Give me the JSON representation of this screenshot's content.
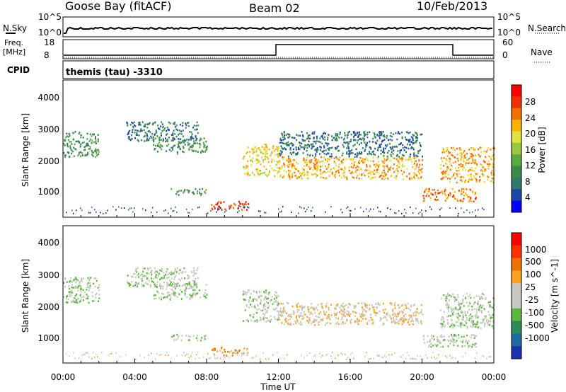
{
  "header": {
    "station": "Goose Bay (fitACF)",
    "beam": "Beam 02",
    "date": "10/Feb/2013"
  },
  "top_panels": {
    "nsky_label": "N.Sky",
    "nsearch_label": "N.Search",
    "nsky_ticks": [
      "10^5",
      "10^0"
    ],
    "nsearch_ticks": [
      "10^5",
      "10^0"
    ],
    "freq_label": "Freq.",
    "freq_unit": "[MHz]",
    "freq_ticks": [
      "18",
      "8"
    ],
    "nave_label": "Nave",
    "nave_ticks": [
      "60",
      "0"
    ],
    "cpid_label": "CPID",
    "cpid_text": "themis (tau) -3310"
  },
  "chart_data": [
    {
      "type": "heatmap",
      "name": "power",
      "ylabel": "Slant Range [km]",
      "xlabel": "Time UT",
      "xlim": [
        0,
        24
      ],
      "ylim": [
        180,
        4500
      ],
      "y_ticks": [
        "1000",
        "2000",
        "3000",
        "4000"
      ],
      "x_ticks": [
        "00:00",
        "04:00",
        "08:00",
        "12:00",
        "16:00",
        "20:00",
        "00:00"
      ],
      "colorbar": {
        "label": "Power [dB]",
        "ticks": [
          "28",
          "24",
          "20",
          "16",
          "12",
          "8",
          "4"
        ],
        "colors": [
          "#0000ff",
          "#1c47a8",
          "#2f7a6a",
          "#3c8a4a",
          "#5aaa3c",
          "#98c83c",
          "#e0e040",
          "#ffb000",
          "#f07000",
          "#f03000",
          "#ff0000"
        ]
      },
      "echo_regions": [
        {
          "t": [
            0.0,
            2.0
          ],
          "r": [
            2100,
            2900
          ],
          "level": 3
        },
        {
          "t": [
            3.5,
            7.5
          ],
          "r": [
            2600,
            3200
          ],
          "level": 2
        },
        {
          "t": [
            5.0,
            8.0
          ],
          "r": [
            2200,
            2700
          ],
          "level": 3
        },
        {
          "t": [
            10.0,
            12.0
          ],
          "r": [
            1500,
            2500
          ],
          "level": 6
        },
        {
          "t": [
            12.0,
            20.0
          ],
          "r": [
            1400,
            2100
          ],
          "level": 7
        },
        {
          "t": [
            12.0,
            20.0
          ],
          "r": [
            2100,
            2900
          ],
          "level": 2
        },
        {
          "t": [
            21.0,
            24.0
          ],
          "r": [
            1300,
            2400
          ],
          "level": 7
        },
        {
          "t": [
            20.0,
            23.0
          ],
          "r": [
            700,
            1100
          ],
          "level": 8
        },
        {
          "t": [
            8.2,
            10.3
          ],
          "r": [
            430,
            700
          ],
          "level": 9
        },
        {
          "t": [
            6.0,
            8.0
          ],
          "r": [
            900,
            1100
          ],
          "level": 3
        }
      ]
    },
    {
      "type": "heatmap",
      "name": "velocity",
      "ylabel": "Slant Range [km]",
      "xlabel": "Time UT",
      "xlim": [
        0,
        24
      ],
      "ylim": [
        180,
        4500
      ],
      "y_ticks": [
        "1000",
        "2000",
        "3000",
        "4000"
      ],
      "x_ticks": [
        "00:00",
        "04:00",
        "08:00",
        "12:00",
        "16:00",
        "20:00",
        "00:00"
      ],
      "colorbar": {
        "label": "Velocity [m s^-1]",
        "ticks": [
          "1000",
          "500",
          "100",
          "25",
          "-25",
          "-100",
          "-500",
          "-1000"
        ],
        "colors": [
          "#1c2fb0",
          "#1c6aa0",
          "#2f8a5a",
          "#5ab83c",
          "#c8c8c0",
          "#c8c8c0",
          "#ffa020",
          "#f07000",
          "#ff3000",
          "#ff0000"
        ]
      },
      "echo_regions": [
        {
          "t": [
            0.0,
            2.0
          ],
          "r": [
            2100,
            2900
          ],
          "level": 4
        },
        {
          "t": [
            3.5,
            7.5
          ],
          "r": [
            2600,
            3200
          ],
          "level": 4
        },
        {
          "t": [
            5.0,
            8.0
          ],
          "r": [
            2200,
            2700
          ],
          "level": 4
        },
        {
          "t": [
            10.0,
            12.0
          ],
          "r": [
            1500,
            2500
          ],
          "level": 4
        },
        {
          "t": [
            12.0,
            20.0
          ],
          "r": [
            1400,
            2100
          ],
          "level": 5
        },
        {
          "t": [
            21.0,
            24.0
          ],
          "r": [
            1300,
            2400
          ],
          "level": 4
        },
        {
          "t": [
            20.0,
            23.0
          ],
          "r": [
            700,
            1100
          ],
          "level": 4
        },
        {
          "t": [
            8.2,
            10.3
          ],
          "r": [
            430,
            700
          ],
          "level": 6
        },
        {
          "t": [
            6.0,
            8.0
          ],
          "r": [
            900,
            1100
          ],
          "level": 4
        }
      ]
    }
  ]
}
